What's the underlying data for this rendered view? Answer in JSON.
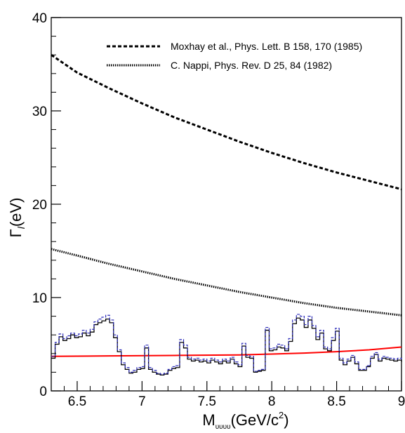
{
  "chart_data": {
    "type": "line",
    "title": "",
    "xlabel": "M",
    "xlabel_sub": "υυυυ",
    "xlabel_unit": "(GeV/c",
    "xlabel_sup": "2",
    "xlabel_close": ")",
    "ylabel": "Γ",
    "ylabel_sub": "l",
    "ylabel_unit": "(eV)",
    "xlim": [
      6.3,
      9.0
    ],
    "ylim": [
      0,
      40
    ],
    "x_ticks": [
      "6.5",
      "7",
      "7.5",
      "8",
      "8.5",
      "9"
    ],
    "x_tick_values": [
      6.5,
      7.0,
      7.5,
      8.0,
      8.5,
      9.0
    ],
    "y_ticks": [
      "0",
      "10",
      "20",
      "30",
      "40"
    ],
    "y_tick_values": [
      0,
      10,
      20,
      30,
      40
    ],
    "grid": false,
    "legend_position": "top-right",
    "series": [
      {
        "name": "Moxhay et al., Phys. Lett. B 158, 170 (1985)",
        "style": "dashed",
        "color": "#000000",
        "x": [
          6.3,
          6.5,
          6.75,
          7.0,
          7.25,
          7.5,
          7.75,
          8.0,
          8.25,
          8.5,
          8.75,
          9.0
        ],
        "y": [
          36.0,
          34.1,
          32.4,
          30.8,
          29.3,
          28.0,
          26.7,
          25.5,
          24.4,
          23.4,
          22.5,
          21.6
        ]
      },
      {
        "name": "C. Nappi, Phys. Rev. D 25, 84 (1982)",
        "style": "dotted",
        "color": "#000000",
        "x": [
          6.3,
          6.5,
          6.75,
          7.0,
          7.25,
          7.5,
          7.75,
          8.0,
          8.25,
          8.5,
          8.75,
          9.0
        ],
        "y": [
          15.2,
          14.5,
          13.6,
          12.8,
          12.0,
          11.3,
          10.6,
          10.0,
          9.4,
          8.9,
          8.5,
          8.1
        ]
      },
      {
        "style": "solid-red",
        "color": "#ff0000",
        "x": [
          6.3,
          6.75,
          7.25,
          7.75,
          8.0,
          8.25,
          8.5,
          8.75,
          9.0
        ],
        "y": [
          3.7,
          3.75,
          3.8,
          3.85,
          3.95,
          4.05,
          4.2,
          4.4,
          4.7
        ]
      },
      {
        "style": "step-black",
        "color": "#000000",
        "bin_width": 0.03,
        "x_start": 6.3,
        "values": [
          3.5,
          5.0,
          5.8,
          5.4,
          5.6,
          6.0,
          5.7,
          5.8,
          6.2,
          5.9,
          6.3,
          7.1,
          7.3,
          7.5,
          7.7,
          7.3,
          5.7,
          4.2,
          2.8,
          2.3,
          1.9,
          2.0,
          2.3,
          2.4,
          4.6,
          2.3,
          2.0,
          1.8,
          1.7,
          1.8,
          2.2,
          2.4,
          2.5,
          5.2,
          4.6,
          3.4,
          3.2,
          3.3,
          3.1,
          3.2,
          3.0,
          3.3,
          3.1,
          2.9,
          3.2,
          3.0,
          3.4,
          2.9,
          2.6,
          4.8,
          3.6,
          3.5,
          2.0,
          2.1,
          2.2,
          6.5,
          4.3,
          4.4,
          4.7,
          4.6,
          4.3,
          5.3,
          7.2,
          7.8,
          7.6,
          6.8,
          7.6,
          6.7,
          5.5,
          6.2,
          4.5,
          4.3,
          5.4,
          6.4,
          3.3,
          2.8,
          3.2,
          3.6,
          2.9,
          2.2,
          2.2,
          2.6,
          3.5,
          3.9,
          3.2,
          3.5,
          3.4,
          3.3,
          3.2,
          3.3,
          3.1
        ]
      },
      {
        "style": "dashed-blue",
        "color": "#2222bb",
        "bin_width": 0.03,
        "x_start": 6.3,
        "values": [
          3.7,
          5.2,
          6.1,
          5.6,
          5.9,
          6.2,
          5.9,
          6.1,
          6.5,
          6.2,
          6.6,
          7.4,
          7.7,
          7.9,
          8.1,
          7.6,
          6.0,
          4.4,
          3.0,
          2.5,
          2.0,
          2.2,
          2.5,
          2.6,
          4.9,
          2.5,
          2.2,
          1.9,
          1.8,
          1.9,
          2.3,
          2.6,
          2.7,
          5.5,
          4.9,
          3.6,
          3.4,
          3.5,
          3.3,
          3.4,
          3.2,
          3.5,
          3.3,
          3.1,
          3.4,
          3.2,
          3.6,
          3.1,
          2.8,
          5.1,
          3.8,
          3.7,
          2.1,
          2.2,
          2.3,
          6.8,
          4.5,
          4.6,
          5.0,
          4.9,
          4.5,
          5.6,
          7.6,
          8.2,
          8.0,
          7.1,
          8.0,
          7.0,
          5.8,
          6.5,
          4.7,
          4.5,
          5.7,
          6.7,
          3.5,
          3.0,
          3.4,
          3.8,
          3.1,
          2.3,
          2.3,
          2.7,
          3.7,
          4.1,
          3.4,
          3.7,
          3.6,
          3.5,
          3.4,
          3.5,
          3.3
        ]
      }
    ]
  }
}
